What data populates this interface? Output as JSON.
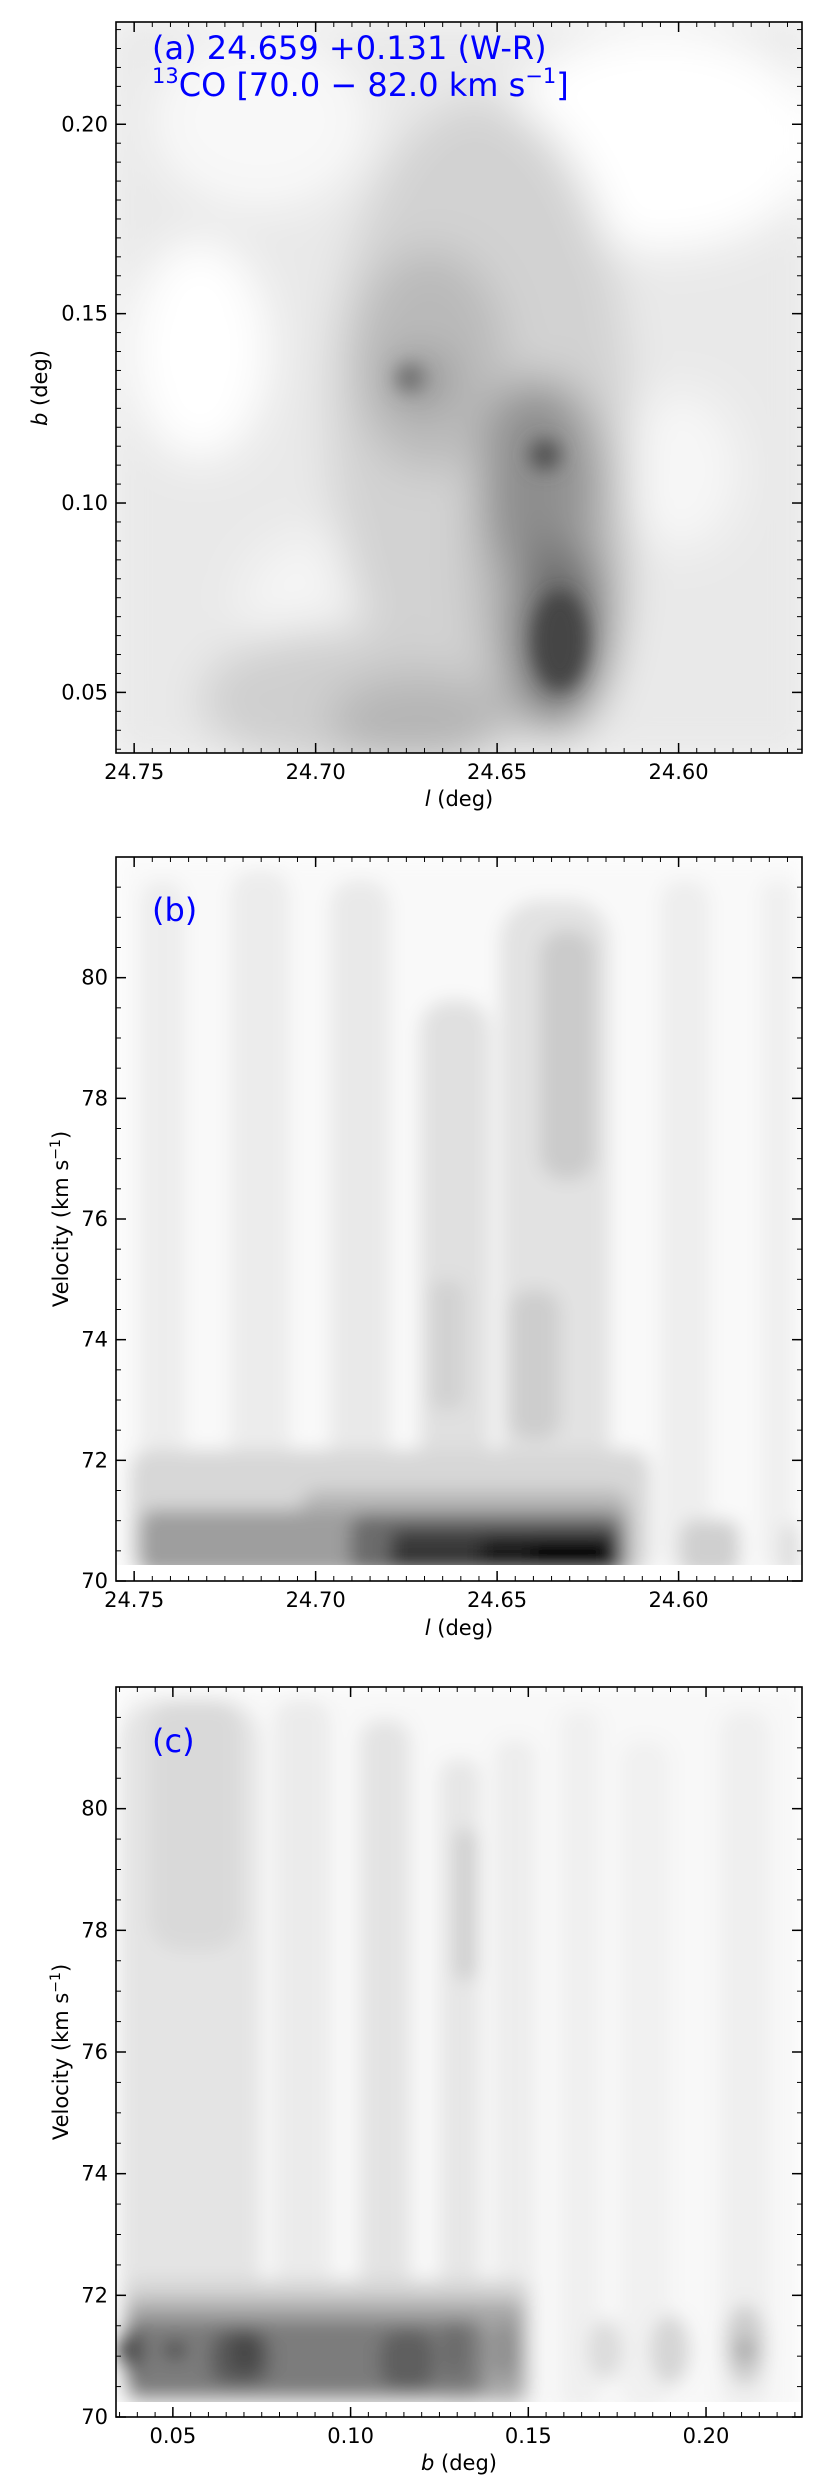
{
  "colors": {
    "annotation": "#0000ff",
    "axis": "#000000",
    "background": "#ffffff",
    "contour_levels": [
      "#f2f2f2",
      "#e4e4e4",
      "#d0d0d0",
      "#b8b8b8",
      "#9a9a9a",
      "#7a7a7a",
      "#555555",
      "#2b2b2b",
      "#0a0a0a"
    ]
  },
  "chart_data": [
    {
      "panel": "a",
      "type": "heatmap",
      "title_line1": "(a) 24.659 +0.131 (W-R)",
      "title_line2_pre": "CO [70.0 − 82.0 km s",
      "title_line2_sup_iso": "13",
      "title_line2_sup_unit": "−1",
      "title_line2_post": "]",
      "xlabel": "l (deg)",
      "xlabel_italic": "l",
      "xlabel_rest": " (deg)",
      "ylabel": "b (deg)",
      "ylabel_italic": "b",
      "ylabel_rest": " (deg)",
      "xlim": [
        24.755,
        24.566
      ],
      "ylim": [
        0.034,
        0.227
      ],
      "xticks": [
        "24.75",
        "24.70",
        "24.65",
        "24.60"
      ],
      "yticks": [
        "0.05",
        "0.10",
        "0.15",
        "0.20"
      ],
      "peaks": [
        {
          "x": 24.63,
          "y": 0.07,
          "level": 6
        },
        {
          "x": 24.634,
          "y": 0.115,
          "level": 5
        },
        {
          "x": 24.666,
          "y": 0.135,
          "level": 5
        },
        {
          "x": 24.704,
          "y": 0.04,
          "level": 4
        }
      ]
    },
    {
      "panel": "b",
      "type": "heatmap",
      "title": "(b)",
      "xlabel": "l (deg)",
      "xlabel_italic": "l",
      "xlabel_rest": " (deg)",
      "ylabel_pre": "Velocity (km s",
      "ylabel_sup": "−1",
      "ylabel_post": ")",
      "xlim": [
        24.755,
        24.566
      ],
      "ylim": [
        70,
        82
      ],
      "xticks": [
        "24.75",
        "24.70",
        "24.65",
        "24.60"
      ],
      "yticks": [
        "70",
        "72",
        "74",
        "76",
        "78",
        "80"
      ],
      "peaks": [
        {
          "x": 24.635,
          "y": 70.4,
          "level": 8
        },
        {
          "x": 24.67,
          "y": 70.5,
          "level": 7
        },
        {
          "x": 24.7,
          "y": 70.6,
          "level": 6
        },
        {
          "x": 24.64,
          "y": 79.0,
          "level": 3
        },
        {
          "x": 24.583,
          "y": 70.5,
          "level": 4
        }
      ]
    },
    {
      "panel": "c",
      "type": "heatmap",
      "title": "(c)",
      "xlabel": "b (deg)",
      "xlabel_italic": "b",
      "xlabel_rest": " (deg)",
      "ylabel_pre": "Velocity (km s",
      "ylabel_sup": "−1",
      "ylabel_post": ")",
      "xlim": [
        0.034,
        0.227
      ],
      "ylim": [
        70,
        82
      ],
      "xticks": [
        "0.05",
        "0.10",
        "0.15",
        "0.20"
      ],
      "yticks": [
        "70",
        "72",
        "74",
        "76",
        "78",
        "80"
      ],
      "peaks": [
        {
          "x": 0.05,
          "y": 71.0,
          "level": 6
        },
        {
          "x": 0.072,
          "y": 71.0,
          "level": 6
        },
        {
          "x": 0.117,
          "y": 71.0,
          "level": 5
        },
        {
          "x": 0.143,
          "y": 71.0,
          "level": 5
        },
        {
          "x": 0.045,
          "y": 80.0,
          "level": 2
        }
      ]
    }
  ]
}
